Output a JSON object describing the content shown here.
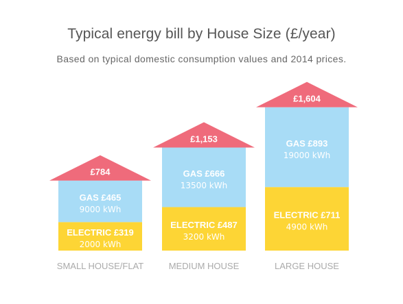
{
  "chart_data": {
    "type": "bar",
    "title": "Typical energy bill by House Size (£/year)",
    "subtitle": "Based on typical domestic consumption values and 2014 prices.",
    "categories": [
      "SMALL HOUSE/FLAT",
      "MEDIUM HOUSE",
      "LARGE HOUSE"
    ],
    "totals": [
      {
        "value": 784,
        "label": "£784"
      },
      {
        "value": 1153,
        "label": "£1,153"
      },
      {
        "value": 1604,
        "label": "£1,604"
      }
    ],
    "series": [
      {
        "name": "ELECTRIC",
        "color": "#FDD535",
        "values": [
          319,
          487,
          711
        ],
        "labels": [
          "ELECTRIC £319",
          "ELECTRIC £487",
          "ELECTRIC £711"
        ],
        "consumption": [
          "2000 kWh",
          "3200 kWh",
          "4900 kWh"
        ]
      },
      {
        "name": "GAS",
        "color": "#A8DCF6",
        "values": [
          465,
          666,
          893
        ],
        "labels": [
          "GAS £465",
          "GAS £666",
          "GAS £893"
        ],
        "consumption": [
          "9000 kWh",
          "13500 kWh",
          "19000 kWh"
        ]
      }
    ],
    "roof_color": "#EF6B7B",
    "xlabel": "",
    "ylabel": ""
  }
}
